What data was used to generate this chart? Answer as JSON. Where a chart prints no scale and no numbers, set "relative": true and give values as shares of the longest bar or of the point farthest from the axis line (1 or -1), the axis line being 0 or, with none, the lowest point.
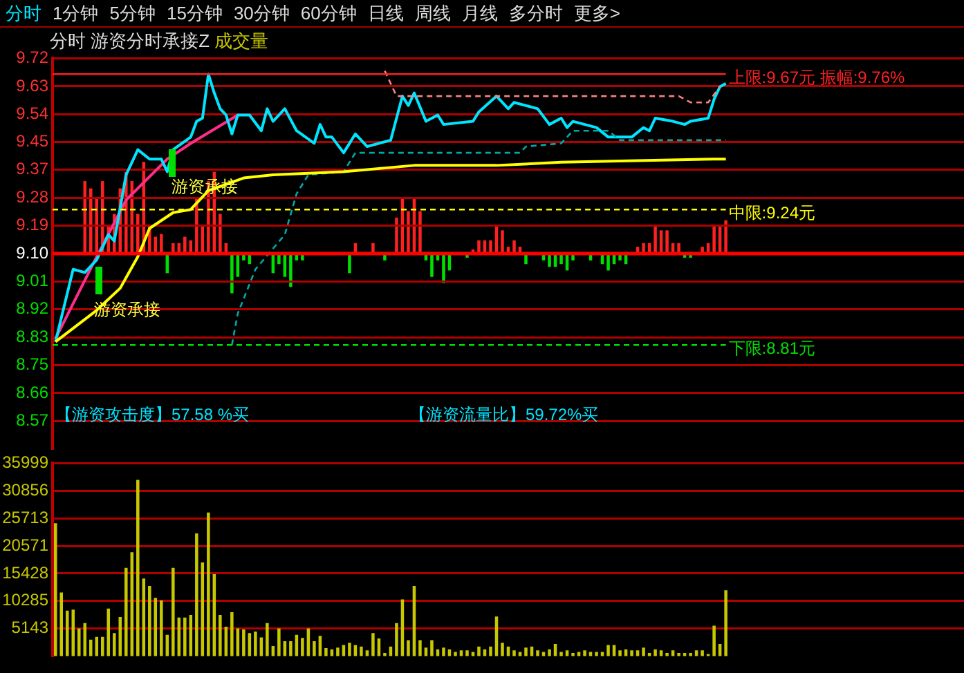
{
  "chart_data": [
    {
      "type": "line",
      "subtitle": "分时 1分钟 5分钟 15分钟 30分钟 60分钟 日线 周线 月线 多分时 更多>",
      "title": "分时 游资分时承接Z 成交量",
      "categories": [
        null,
        null,
        null,
        null,
        null,
        null,
        null,
        null,
        null,
        null,
        null,
        null,
        null,
        null,
        null,
        null,
        null,
        null,
        null,
        null,
        null,
        null,
        null,
        null,
        null,
        null,
        null,
        null,
        null,
        null,
        null,
        null,
        null,
        null,
        null,
        null,
        null,
        null,
        null,
        null,
        null,
        null,
        null,
        null,
        null,
        null,
        null,
        null,
        null,
        null,
        null,
        null,
        null,
        null,
        null,
        null,
        null,
        null,
        null,
        null,
        null,
        null,
        null,
        null,
        null,
        null,
        null,
        null,
        null,
        null,
        null,
        null,
        null,
        null,
        null,
        null,
        null,
        null,
        null,
        null,
        null,
        null,
        null,
        null,
        null,
        null,
        null,
        null,
        null,
        null,
        null,
        null,
        null,
        null,
        null,
        null,
        null,
        null,
        null,
        null,
        null,
        null,
        null,
        null,
        null,
        null,
        null,
        null,
        null,
        null,
        null,
        null,
        null,
        null,
        null,
        null,
        null,
        null,
        null,
        null,
        null,
        null,
        null,
        null,
        null,
        null,
        null,
        null,
        null,
        null,
        null,
        null,
        null,
        null,
        null,
        null,
        null,
        null,
        null,
        null,
        null,
        null,
        null,
        null,
        null,
        null,
        null,
        null,
        null,
        null,
        null,
        null,
        null,
        null,
        null
      ],
      "ylim": [
        8.48,
        9.72
      ],
      "tick_labels": "y",
      "grid": "y",
      "marker": "none",
      "yticks": [
        {
          "value": 8.569,
          "label": "8.57"
        },
        {
          "value": 8.657,
          "label": "8.66"
        },
        {
          "value": 8.746,
          "label": "8.75"
        },
        {
          "value": 8.834,
          "label": "8.83"
        },
        {
          "value": 8.923,
          "label": "8.92"
        },
        {
          "value": 9.011,
          "label": "9.01"
        },
        {
          "value": 9.1,
          "label": "9.10"
        },
        {
          "value": 9.189,
          "label": "9.19"
        },
        {
          "value": 9.277,
          "label": "9.28"
        },
        {
          "value": 9.366,
          "label": "9.37"
        },
        {
          "value": 9.454,
          "label": "9.45"
        },
        {
          "value": 9.543,
          "label": "9.54"
        },
        {
          "value": 9.631,
          "label": "9.63"
        },
        9.72
      ],
      "series": [
        {
          "color": "#ffff00",
          "values": [
            8.82,
            null,
            null,
            null,
            null,
            null,
            null,
            8.92,
            null,
            null,
            null,
            8.99,
            null,
            null,
            9.09,
            null,
            9.18,
            null,
            null,
            null,
            9.23,
            null,
            null,
            9.24,
            null,
            null,
            9.3,
            null,
            null,
            null,
            null,
            null,
            9.34,
            null,
            null,
            null,
            null,
            9.35,
            null,
            null,
            null,
            null,
            null,
            null,
            null,
            null,
            null,
            null,
            null,
            9.36,
            null,
            null,
            null,
            null,
            null,
            null,
            null,
            null,
            null,
            null,
            null,
            9.38,
            null,
            null,
            null,
            null,
            null,
            null,
            null,
            null,
            null,
            null,
            null,
            null,
            null,
            9.38,
            null,
            null,
            null,
            null,
            null,
            null,
            null,
            null,
            null,
            null,
            9.39,
            null,
            null,
            null,
            null,
            null,
            null,
            null,
            null,
            null,
            null,
            null,
            null,
            null,
            null,
            null,
            null,
            null,
            null,
            null,
            null,
            null,
            null,
            null,
            null,
            null,
            9.4,
            null,
            9.4,
            null,
            null,
            null,
            null,
            null,
            null,
            null,
            null,
            null,
            null,
            null,
            null,
            null,
            null,
            null,
            null,
            null,
            null,
            null,
            null,
            null,
            null,
            null,
            null,
            null,
            null,
            null,
            null,
            null,
            null,
            null,
            null,
            null,
            null,
            null,
            null,
            null,
            null,
            null,
            null
          ]
        },
        {
          "color": "#00a8a8",
          "line_style": "dashed",
          "values": [
            null,
            null,
            null,
            null,
            null,
            null,
            null,
            null,
            null,
            null,
            null,
            null,
            null,
            null,
            null,
            null,
            null,
            null,
            null,
            null,
            null,
            null,
            null,
            null,
            null,
            null,
            null,
            null,
            null,
            null,
            8.81,
            8.91,
            null,
            null,
            9.05,
            null,
            null,
            null,
            null,
            9.16,
            null,
            9.29,
            null,
            9.35,
            null,
            null,
            null,
            null,
            null,
            9.36,
            null,
            9.42,
            null,
            null,
            null,
            null,
            null,
            null,
            null,
            null,
            null,
            null,
            null,
            null,
            null,
            null,
            null,
            null,
            null,
            null,
            null,
            null,
            null,
            null,
            null,
            null,
            null,
            null,
            null,
            9.42,
            9.44,
            null,
            null,
            null,
            null,
            null,
            9.45,
            null,
            9.49,
            null,
            null,
            null,
            null,
            null,
            9.49,
            null,
            9.46,
            null,
            null,
            null,
            null,
            null,
            null,
            null,
            null,
            null,
            null,
            null,
            null,
            null,
            null,
            null,
            null,
            null,
            9.46,
            null,
            null,
            null,
            null,
            null,
            null,
            null,
            null,
            null,
            null,
            null,
            null,
            null,
            null,
            null,
            null,
            null,
            null,
            null,
            null,
            null,
            null,
            null,
            null,
            null,
            null,
            null,
            null,
            null,
            null,
            null,
            null,
            null,
            null,
            null,
            null,
            null,
            null,
            null,
            null
          ]
        },
        {
          "color": "#ff8080",
          "line_style": "dashed",
          "values": [
            null,
            null,
            null,
            null,
            null,
            null,
            null,
            null,
            null,
            null,
            null,
            null,
            null,
            null,
            null,
            null,
            null,
            null,
            null,
            null,
            null,
            null,
            null,
            null,
            null,
            null,
            null,
            null,
            null,
            null,
            null,
            null,
            null,
            null,
            null,
            null,
            null,
            null,
            null,
            null,
            null,
            null,
            null,
            null,
            null,
            null,
            null,
            null,
            null,
            null,
            null,
            null,
            null,
            null,
            null,
            null,
            9.68,
            null,
            9.6,
            null,
            null,
            null,
            null,
            null,
            null,
            null,
            null,
            null,
            null,
            null,
            null,
            null,
            null,
            null,
            null,
            null,
            null,
            null,
            null,
            null,
            null,
            null,
            null,
            null,
            null,
            null,
            null,
            null,
            null,
            null,
            null,
            null,
            null,
            null,
            null,
            null,
            null,
            null,
            null,
            null,
            null,
            null,
            null,
            null,
            null,
            null,
            9.6,
            null,
            9.58,
            null,
            null,
            9.58,
            null,
            9.63,
            null,
            null,
            null,
            null,
            null,
            null,
            null,
            null,
            null,
            null,
            null,
            null,
            null,
            null,
            null,
            null,
            null,
            null,
            null,
            null,
            null,
            null,
            null,
            null,
            null,
            null,
            null,
            null,
            null,
            null,
            null,
            null,
            null,
            null,
            null,
            null,
            null,
            null,
            null,
            null,
            null
          ]
        },
        {
          "color": "#00e5ff",
          "values": [
            8.82,
            null,
            null,
            9.05,
            null,
            9.04,
            null,
            9.08,
            null,
            9.16,
            9.14,
            null,
            9.35,
            null,
            9.43,
            null,
            9.4,
            null,
            9.4,
            9.36,
            9.43,
            null,
            null,
            9.47,
            9.52,
            9.53,
            9.67,
            9.61,
            9.56,
            9.54,
            9.48,
            9.54,
            null,
            9.54,
            null,
            9.49,
            9.56,
            9.52,
            null,
            9.56,
            null,
            9.49,
            null,
            null,
            9.45,
            9.51,
            9.47,
            9.47,
            null,
            9.42,
            null,
            9.48,
            null,
            9.44,
            null,
            null,
            null,
            9.46,
            null,
            9.6,
            9.57,
            9.61,
            null,
            9.52,
            null,
            9.54,
            9.51,
            null,
            null,
            null,
            null,
            9.52,
            9.55,
            null,
            null,
            9.6,
            null,
            9.56,
            9.58,
            null,
            null,
            null,
            9.56,
            null,
            9.51,
            null,
            9.53,
            9.5,
            9.52,
            null,
            null,
            null,
            9.5,
            null,
            9.47,
            null,
            null,
            null,
            9.47,
            null,
            9.5,
            9.49,
            9.53,
            null,
            null,
            9.52,
            null,
            9.51,
            9.52,
            null,
            null,
            9.53,
            9.59,
            9.63,
            9.64,
            null,
            null,
            null,
            null,
            null,
            null,
            null,
            null,
            null,
            null,
            null,
            null,
            null,
            null,
            null,
            null,
            null,
            null,
            null,
            null,
            null,
            null,
            null,
            null,
            null,
            null,
            null,
            null,
            null,
            null,
            null,
            null,
            null,
            null,
            null,
            null,
            null,
            null,
            null,
            null
          ]
        },
        {
          "color": "#ff2d8a",
          "values": [
            8.83,
            null,
            null,
            null,
            null,
            null,
            null,
            9.09,
            null,
            null,
            null,
            null,
            9.27,
            null,
            null,
            null,
            null,
            null,
            null,
            9.4,
            null,
            null,
            null,
            9.45,
            null,
            null,
            null,
            null,
            null,
            null,
            null,
            9.54,
            null,
            null,
            null,
            null,
            null,
            null,
            null,
            null,
            null,
            null,
            null,
            null,
            null,
            null,
            null,
            null,
            null,
            null,
            null,
            null,
            null,
            null,
            null,
            null,
            null,
            null,
            null,
            null,
            null,
            null,
            null,
            null,
            null,
            null,
            null,
            null,
            null,
            null,
            null,
            null,
            null,
            null,
            null,
            null,
            null,
            null,
            null,
            null,
            null,
            null,
            null,
            null,
            null,
            null,
            null,
            null,
            null,
            null,
            null,
            null,
            null,
            null,
            null,
            null,
            null,
            null,
            null,
            null,
            null,
            null,
            null,
            null,
            null,
            null,
            null,
            null,
            null,
            null,
            null,
            null,
            null,
            null,
            null,
            null,
            null,
            null,
            null,
            null,
            null,
            null,
            null,
            null,
            null,
            null,
            null,
            null,
            null,
            null,
            null,
            null,
            null,
            null,
            null,
            null,
            null,
            null,
            null,
            null,
            null,
            null,
            null,
            null,
            null,
            null,
            null,
            null,
            null,
            null,
            null,
            null,
            null,
            null,
            null
          ]
        }
      ],
      "ref_lines": [
        {
          "axis": "y",
          "value": 9.1,
          "label": null,
          "color": "#ff0000",
          "line_style": "solid"
        },
        {
          "axis": "y",
          "value": 9.67,
          "label": "上限:9.67元 振幅:9.76%",
          "color": "#ff2020",
          "line_style": "solid"
        },
        {
          "axis": "y",
          "value": 9.24,
          "label": "中限:9.24元",
          "color": "#ffff00",
          "line_style": "dashed"
        },
        {
          "axis": "y",
          "value": 8.81,
          "label": "下限:8.81元",
          "color": "#00e000",
          "line_style": "dashed"
        }
      ],
      "annotations": [
        "【游资攻击度】57.58 %买",
        "【游资流量比】59.72%买",
        "游资承接",
        "游资承接"
      ]
    },
    {
      "type": "bar",
      "relative": true,
      "tick_labels": false,
      "categories": [
        null,
        null,
        null,
        null,
        null,
        null,
        null,
        null,
        null,
        null,
        null,
        null,
        null,
        null,
        null,
        null,
        null,
        null,
        null,
        null,
        null,
        null,
        null,
        null,
        null,
        null,
        null,
        null,
        null,
        null,
        null,
        null,
        null,
        null,
        null,
        null,
        null,
        null,
        null,
        null,
        null,
        null,
        null,
        null,
        null,
        null,
        null,
        null,
        null,
        null,
        null,
        null,
        null,
        null,
        null,
        null,
        null,
        null,
        null,
        null,
        null,
        null,
        null,
        null,
        null,
        null,
        null,
        null,
        null,
        null,
        null,
        null,
        null,
        null,
        null,
        null,
        null,
        null,
        null,
        null,
        null,
        null,
        null,
        null,
        null,
        null,
        null,
        null,
        null,
        null,
        null,
        null,
        null,
        null,
        null,
        null,
        null,
        null,
        null,
        null,
        null,
        null,
        null,
        null,
        null,
        null,
        null,
        null,
        null,
        null,
        null,
        null,
        null,
        null,
        null,
        null,
        null,
        null,
        null,
        null,
        null,
        null,
        null,
        null,
        null,
        null,
        null,
        null,
        null,
        null,
        null,
        null,
        null,
        null,
        null,
        null,
        null,
        null,
        null,
        null,
        null,
        null,
        null,
        null,
        null,
        null,
        null,
        null,
        null,
        null,
        null,
        null,
        null,
        null,
        null
      ],
      "values": [
        null,
        null,
        null,
        null,
        null,
        0.79,
        0.71,
        0.61,
        0.79,
        0.29,
        0.43,
        0.71,
        0.89,
        0.79,
        0.43,
        1,
        0.29,
        0.18,
        0.21,
        -0.21,
        0.11,
        0.11,
        0.18,
        0.14,
        0.61,
        0.29,
        0.79,
        0.89,
        0.43,
        0.11,
        -0.43,
        -0.25,
        -0.07,
        -0.11,
        null,
        null,
        null,
        -0.21,
        -0.11,
        -0.25,
        -0.36,
        -0.07,
        -0.07,
        null,
        null,
        null,
        null,
        null,
        null,
        null,
        -0.21,
        0.11,
        null,
        null,
        0.11,
        null,
        -0.07,
        null,
        0.39,
        0.61,
        0.46,
        0.61,
        0.46,
        -0.07,
        -0.25,
        -0.07,
        -0.32,
        -0.18,
        null,
        null,
        -0.04,
        0.04,
        0.14,
        0.14,
        0.14,
        0.29,
        0.25,
        0.07,
        0.14,
        0.07,
        -0.11,
        null,
        null,
        -0.07,
        -0.14,
        -0.14,
        -0.11,
        -0.18,
        -0.07,
        null,
        null,
        -0.07,
        null,
        -0.11,
        -0.18,
        -0.11,
        -0.07,
        -0.11,
        null,
        0.07,
        0.11,
        0.11,
        0.29,
        0.25,
        0.25,
        0.11,
        0.11,
        -0.04,
        -0.04,
        null,
        0.07,
        0.11,
        0.29,
        0.29,
        0.36,
        null,
        null,
        null,
        null,
        null,
        null,
        null,
        null,
        null,
        null,
        null,
        null,
        null,
        null,
        null,
        null,
        null,
        null,
        null,
        null,
        null,
        null,
        null,
        null,
        null,
        null,
        null,
        null,
        null,
        null,
        null,
        null,
        null,
        null,
        null,
        null,
        null,
        null,
        null,
        null
      ],
      "colors": [
        null,
        null,
        null,
        null,
        null,
        "#ff2020",
        "#ff2020",
        "#ff2020",
        "#ff2020",
        "#ff2020",
        "#ff2020",
        "#ff2020",
        "#ff2020",
        "#ff2020",
        "#ff2020",
        "#ff2020",
        "#ff2020",
        "#ff2020",
        "#ff2020",
        "#00e000",
        "#ff2020",
        "#ff2020",
        "#ff2020",
        "#ff2020",
        "#ff2020",
        "#ff2020",
        "#ff2020",
        "#ff2020",
        "#ff2020",
        "#ff2020",
        "#00e000",
        "#00e000",
        "#00e000",
        "#00e000",
        null,
        null,
        null,
        "#00e000",
        "#00e000",
        "#00e000",
        "#00e000",
        "#00e000",
        "#00e000",
        null,
        null,
        null,
        null,
        null,
        null,
        null,
        "#00e000",
        "#ff2020",
        null,
        null,
        "#ff2020",
        null,
        "#00e000",
        null,
        "#ff2020",
        "#ff2020",
        "#ff2020",
        "#ff2020",
        "#ff2020",
        "#00e000",
        "#00e000",
        "#00e000",
        "#00e000",
        "#00e000",
        null,
        null,
        "#00e000",
        "#ff2020",
        "#ff2020",
        "#ff2020",
        "#ff2020",
        "#ff2020",
        "#ff2020",
        "#ff2020",
        "#ff2020",
        "#ff2020",
        "#00e000",
        null,
        null,
        "#00e000",
        "#00e000",
        "#00e000",
        "#00e000",
        "#00e000",
        "#00e000",
        null,
        null,
        "#00e000",
        null,
        "#00e000",
        "#00e000",
        "#00e000",
        "#00e000",
        "#00e000",
        null,
        "#ff2020",
        "#ff2020",
        "#ff2020",
        "#ff2020",
        "#ff2020",
        "#ff2020",
        "#ff2020",
        "#ff2020",
        "#00e000",
        "#00e000",
        null,
        "#ff2020",
        "#ff2020",
        "#ff2020",
        "#ff2020",
        "#ff2020",
        null,
        null,
        null,
        null,
        null,
        null,
        null,
        null,
        null,
        null,
        null,
        null,
        null,
        null,
        null,
        null,
        null,
        null,
        null,
        null,
        null,
        null,
        null,
        null,
        null,
        null,
        null,
        null,
        null,
        null,
        null,
        null,
        null,
        null,
        null,
        null,
        null,
        null,
        null,
        null
      ]
    },
    {
      "type": "bar",
      "color": "#c8c800",
      "ylim": [
        0,
        35999
      ],
      "tick_labels": "y",
      "grid": "y",
      "yticks": [
        5143,
        10285,
        15428,
        20571,
        25713,
        30856,
        35999
      ],
      "categories": [
        null,
        null,
        null,
        null,
        null,
        null,
        null,
        null,
        null,
        null,
        null,
        null,
        null,
        null,
        null,
        null,
        null,
        null,
        null,
        null,
        null,
        null,
        null,
        null,
        null,
        null,
        null,
        null,
        null,
        null,
        null,
        null,
        null,
        null,
        null,
        null,
        null,
        null,
        null,
        null,
        null,
        null,
        null,
        null,
        null,
        null,
        null,
        null,
        null,
        null,
        null,
        null,
        null,
        null,
        null,
        null,
        null,
        null,
        null,
        null,
        null,
        null,
        null,
        null,
        null,
        null,
        null,
        null,
        null,
        null,
        null,
        null,
        null,
        null,
        null,
        null,
        null,
        null,
        null,
        null,
        null,
        null,
        null,
        null,
        null,
        null,
        null,
        null,
        null,
        null,
        null,
        null,
        null,
        null,
        null,
        null,
        null,
        null,
        null,
        null,
        null,
        null,
        null,
        null,
        null,
        null,
        null,
        null,
        null,
        null,
        null,
        null,
        null,
        null,
        null,
        null,
        null,
        null,
        null,
        null,
        null,
        null,
        null,
        null,
        null,
        null,
        null,
        null,
        null,
        null,
        null,
        null,
        null,
        null,
        null,
        null,
        null,
        null,
        null,
        null,
        null,
        null,
        null,
        null,
        null,
        null,
        null,
        null,
        null,
        null,
        null,
        null,
        null,
        null,
        null
      ],
      "values": [
        24700,
        11800,
        8400,
        8600,
        5100,
        6100,
        3000,
        3500,
        3500,
        8800,
        4200,
        7200,
        16400,
        19300,
        32800,
        14400,
        13000,
        10800,
        10300,
        3900,
        16400,
        7100,
        7100,
        7600,
        22800,
        17400,
        26700,
        15200,
        7600,
        5400,
        8100,
        5100,
        4900,
        4200,
        4500,
        3400,
        6100,
        1800,
        5100,
        2700,
        2700,
        3900,
        3300,
        5100,
        2700,
        3700,
        1400,
        1200,
        1500,
        2000,
        2400,
        2000,
        1700,
        1000,
        4200,
        3200,
        500,
        1700,
        6100,
        10500,
        2900,
        13000,
        2900,
        1500,
        2900,
        1200,
        1500,
        1200,
        700,
        1000,
        1000,
        700,
        1700,
        1200,
        1700,
        7300,
        2400,
        1700,
        1000,
        700,
        1500,
        1700,
        1000,
        700,
        1200,
        2200,
        700,
        1000,
        500,
        700,
        1000,
        700,
        700,
        700,
        2000,
        2000,
        1000,
        1200,
        1000,
        1000,
        1500,
        500,
        1200,
        1000,
        500,
        1000,
        500,
        500,
        500,
        1000,
        1000,
        300,
        5600,
        2200,
        12200,
        null,
        null,
        null,
        null,
        null,
        null,
        null,
        null,
        null,
        null,
        null,
        null,
        null,
        null,
        null,
        null,
        null,
        null,
        null,
        null,
        null,
        null,
        null,
        null,
        null,
        null,
        null,
        null,
        null,
        null,
        null,
        null,
        null,
        null,
        null,
        null,
        null,
        null,
        null,
        null
      ]
    }
  ]
}
